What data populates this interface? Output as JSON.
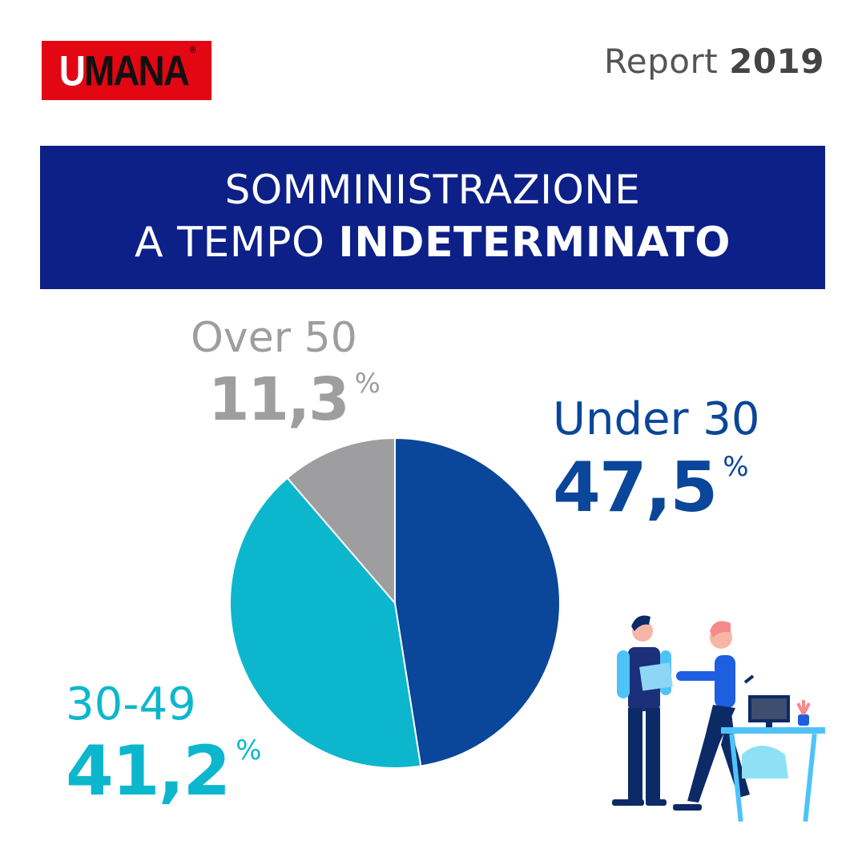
{
  "brand": {
    "logo_first": "U",
    "logo_rest": "MANA",
    "logo_reg": "®"
  },
  "report": {
    "label": "Report",
    "year": "2019"
  },
  "banner": {
    "line1": "SOMMINISTRAZIONE",
    "line2_normal": "A TEMPO",
    "line2_bold": "INDETERMINATO"
  },
  "colors": {
    "under30": "#0a4699",
    "mid": "#0cb7cd",
    "over50": "#9e9d9f",
    "banner": "#0c2088",
    "brand_red": "#e30613"
  },
  "chart_data": {
    "type": "pie",
    "slices": [
      {
        "name": "Under 30",
        "value": 47.5,
        "label": "47,5",
        "color": "#0a4699"
      },
      {
        "name": "30-49",
        "value": 41.2,
        "label": "41,2",
        "color": "#0cb7cd"
      },
      {
        "name": "Over 50",
        "value": 11.3,
        "label": "11,3",
        "color": "#9e9d9f"
      }
    ],
    "unit": "%"
  }
}
